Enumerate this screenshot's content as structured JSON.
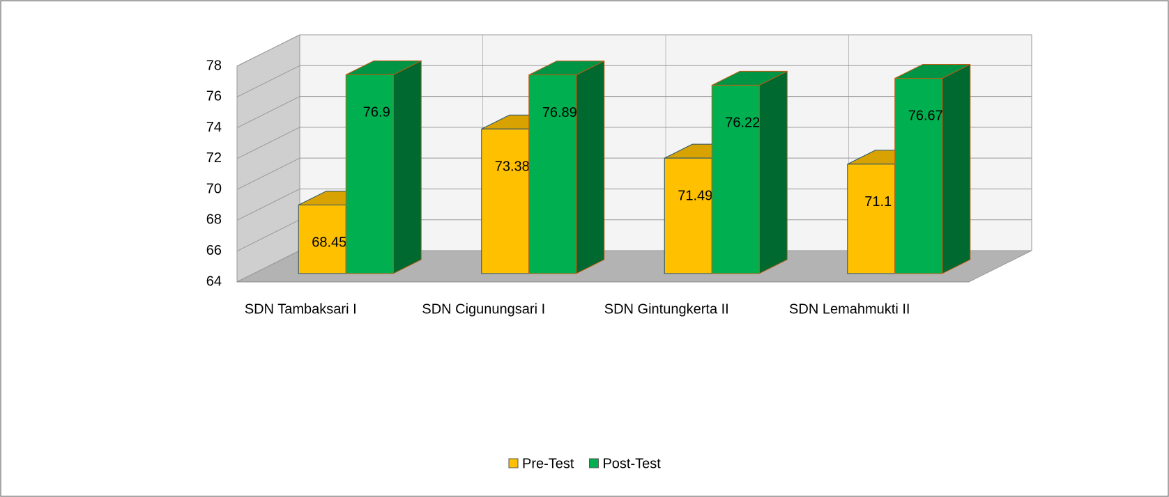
{
  "chart_data": {
    "type": "bar3d",
    "categories": [
      "SDN Tambaksari I",
      "SDN Cigunungsari I",
      "SDN Gintungkerta II",
      "SDN Lemahmukti II"
    ],
    "series": [
      {
        "name": "Pre-Test",
        "color": "#ffc000",
        "values": [
          68.45,
          73.38,
          71.49,
          71.1
        ]
      },
      {
        "name": "Post-Test",
        "color": "#00b050",
        "values": [
          76.9,
          76.89,
          76.22,
          76.67
        ]
      }
    ],
    "ylim": [
      64,
      78
    ],
    "yticks": [
      64,
      66,
      68,
      70,
      72,
      74,
      76,
      78
    ],
    "grid": true,
    "legend": "bottom"
  }
}
